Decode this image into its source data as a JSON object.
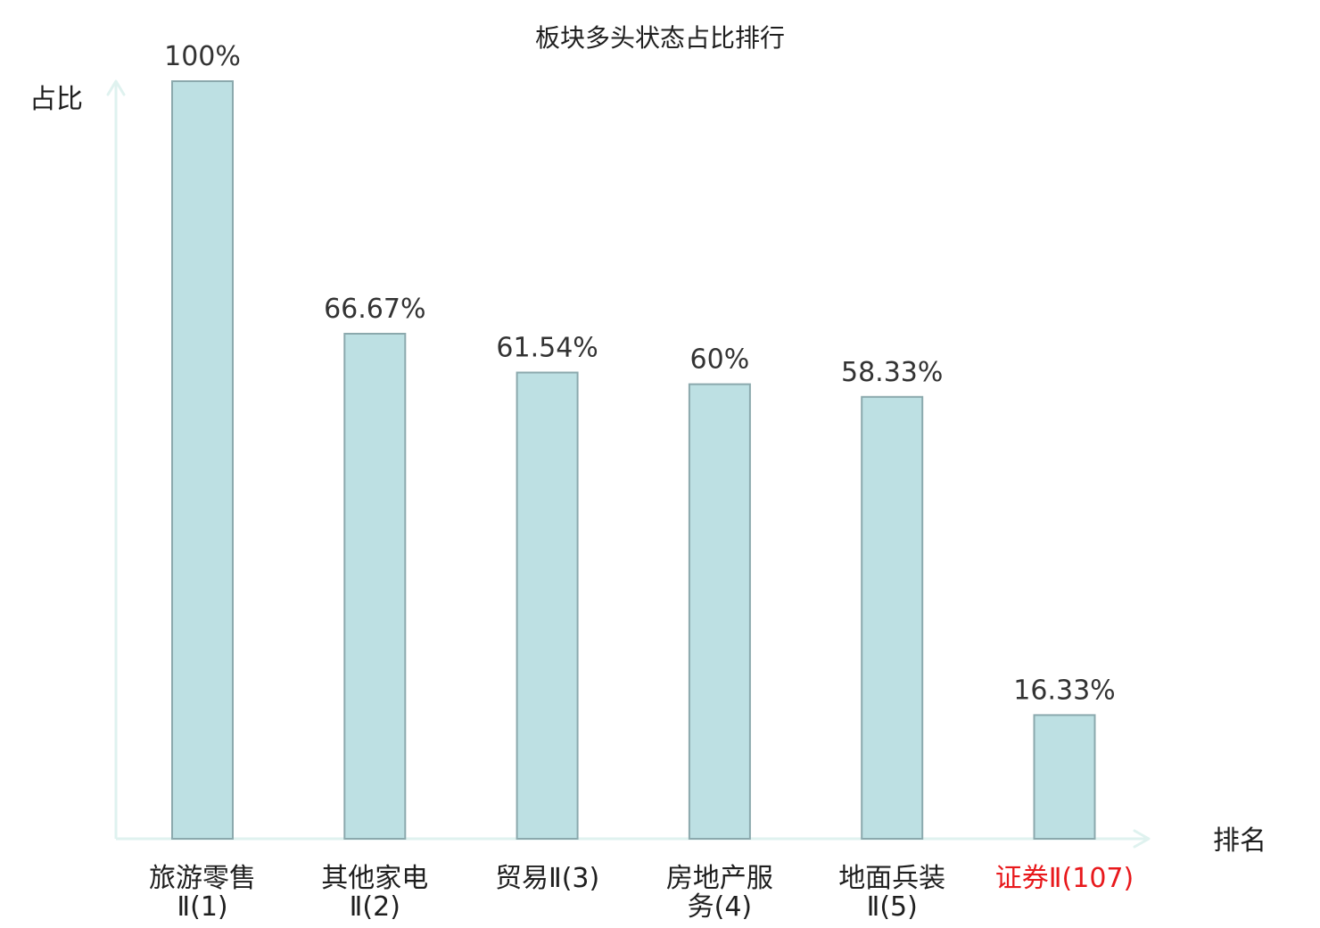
{
  "chart_data": {
    "type": "bar",
    "title": "板块多头状态占比排行",
    "xlabel": "排名",
    "ylabel": "占比",
    "ylim": [
      0,
      100
    ],
    "grid": false,
    "categories": [
      {
        "lines": [
          "旅游零售",
          "Ⅱ(1)"
        ],
        "highlight": false
      },
      {
        "lines": [
          "其他家电",
          "Ⅱ(2)"
        ],
        "highlight": false
      },
      {
        "lines": [
          "贸易Ⅱ(3)"
        ],
        "highlight": false
      },
      {
        "lines": [
          "房地产服",
          "务(4)"
        ],
        "highlight": false
      },
      {
        "lines": [
          "地面兵装",
          "Ⅱ(5)"
        ],
        "highlight": false
      },
      {
        "lines": [
          "证券Ⅱ(107)"
        ],
        "highlight": true
      }
    ],
    "values": [
      100,
      66.67,
      61.54,
      60,
      58.33,
      16.33
    ],
    "value_labels": [
      "100%",
      "66.67%",
      "61.54%",
      "60%",
      "58.33%",
      "16.33%"
    ],
    "colors": {
      "bar_fill": "#bde0e3",
      "bar_stroke": "#8ba9ad",
      "axis": "#dff2ef",
      "highlight_text": "#e8191c"
    }
  }
}
